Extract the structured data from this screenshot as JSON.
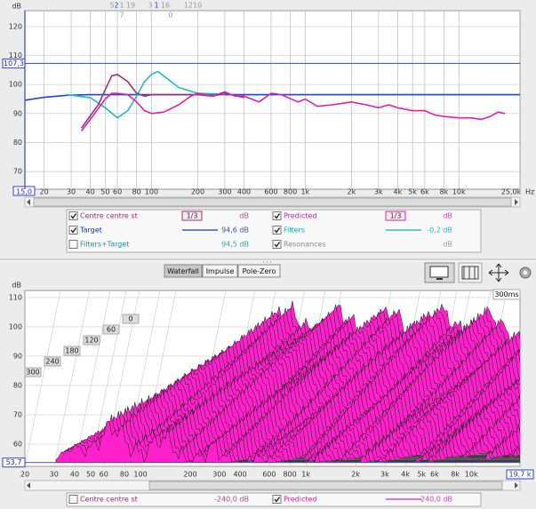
{
  "top_chart": {
    "type": "line",
    "y_unit": "dB",
    "x_unit": "Hz",
    "log_x": true,
    "xlim": [
      15,
      25000
    ],
    "ylim": [
      63.9,
      125.5
    ],
    "xticks": [
      {
        "value": 15,
        "label": "15,0"
      },
      20,
      30,
      40,
      50,
      60,
      80,
      100,
      200,
      300,
      400,
      600,
      800,
      {
        "value": 1000,
        "label": "1k"
      },
      {
        "value": 2000,
        "label": "2k"
      },
      {
        "value": 3000,
        "label": "3k"
      },
      {
        "value": 4000,
        "label": "4k"
      },
      {
        "value": 5000,
        "label": "5k"
      },
      {
        "value": 6000,
        "label": "6k"
      },
      {
        "value": 8000,
        "label": "8k"
      },
      {
        "value": 10000,
        "label": "10k"
      },
      {
        "value": 25000,
        "label": "25,0k"
      }
    ],
    "yticks": [
      70,
      80,
      90,
      100,
      110,
      120
    ],
    "level_marker": {
      "value": 107.3,
      "label": "107,3"
    },
    "top_markers": [
      "5",
      "2",
      "1",
      "19",
      "3",
      "1",
      "16",
      "1210",
      "7",
      "0"
    ],
    "series": [
      {
        "color": "#2244cc",
        "x": [
          15,
          20,
          28,
          40,
          25000
        ],
        "values": [
          94.6,
          95.6,
          96.3,
          96.5,
          96.5
        ]
      },
      {
        "color": "#22bbbb",
        "x": [
          28,
          40,
          50,
          60,
          70,
          80,
          90,
          100,
          110,
          120,
          150,
          200,
          250,
          300
        ],
        "values": [
          96.5,
          95.5,
          92,
          88.5,
          91,
          96,
          101,
          103.5,
          104.5,
          103,
          99,
          97,
          96.8,
          96.6
        ]
      },
      {
        "color": "#993377",
        "x": [
          35,
          45,
          55,
          60,
          70,
          80,
          90,
          100,
          150,
          200,
          250,
          300,
          400
        ],
        "values": [
          85,
          93,
          103,
          103.5,
          101,
          97,
          96,
          96.5,
          96.5,
          96.5,
          96,
          97,
          95.5
        ]
      },
      {
        "color": "#dd22aa",
        "x": [
          35,
          40,
          50,
          55,
          60,
          70,
          80,
          90,
          100,
          120,
          150,
          180,
          200,
          250,
          300,
          350,
          400,
          500,
          600,
          700,
          900,
          1000,
          1200,
          1500,
          2000,
          2500,
          3000,
          3500,
          4000,
          5000,
          6000,
          7000,
          8000,
          10000,
          12000,
          14000,
          16000,
          18000,
          20000
        ],
        "values": [
          84,
          88,
          95,
          97,
          97,
          96.5,
          94,
          91,
          90,
          90.5,
          93,
          96,
          97,
          96,
          97.5,
          96,
          96,
          94,
          97,
          96.5,
          94,
          95,
          92.5,
          93,
          94,
          93,
          92,
          93,
          92,
          91,
          91,
          89.5,
          89,
          88.5,
          88.5,
          88,
          89,
          90.5,
          90
        ]
      }
    ]
  },
  "top_legend": [
    {
      "name": "Centre centre st",
      "checked": true,
      "color": "#993377",
      "smoothing": "1/3",
      "reading": "dB"
    },
    {
      "name": "Predicted",
      "checked": true,
      "color": "#dd22aa",
      "smoothing": "1/3",
      "reading": "dB"
    },
    {
      "name": "Target",
      "checked": true,
      "color": "#2233aa",
      "line_sample": true,
      "reading": "94,6 dB"
    },
    {
      "name": "Filters",
      "checked": true,
      "color": "#11aaaa",
      "line_sample": true,
      "reading": "-0,2 dB"
    },
    {
      "name": "Filters+Target",
      "checked": false,
      "color": "#119999",
      "reading": "94,5 dB"
    },
    {
      "name": "Resonances",
      "checked": true,
      "color": "#888888",
      "reading": "dB"
    }
  ],
  "toolbar": [
    {
      "label": "Waterfall",
      "pressed": true
    },
    {
      "label": "Impulse",
      "pressed": false
    },
    {
      "label": "Pole-Zero",
      "pressed": false
    }
  ],
  "waterfall": {
    "type": "waterfall",
    "y_unit": "dB",
    "log_x": true,
    "xlim": [
      20,
      19700
    ],
    "ylim": [
      52.4,
      112.4
    ],
    "xticks": [
      20,
      30,
      40,
      50,
      60,
      80,
      100,
      200,
      300,
      400,
      600,
      800,
      {
        "value": 1000,
        "label": "1k"
      },
      {
        "value": 2000,
        "label": "2k"
      },
      {
        "value": 3000,
        "label": "3k"
      },
      {
        "value": 4000,
        "label": "4k"
      },
      {
        "value": 5000,
        "label": "5k"
      },
      {
        "value": 6000,
        "label": "6k"
      },
      {
        "value": 8000,
        "label": "8k"
      },
      {
        "value": 10000,
        "label": "10k"
      },
      {
        "value": 19700,
        "label": "19,7 k"
      }
    ],
    "yticks": [
      60,
      70,
      80,
      90,
      100,
      110
    ],
    "floor_marker": {
      "value": 53.7,
      "label": "53,7"
    },
    "time_ticks": [
      0,
      60,
      120,
      180,
      240,
      300
    ],
    "time_label": "300ms",
    "color": "#ff22cc"
  },
  "bottom_legend": [
    {
      "name": "Centre centre st",
      "checked": false,
      "color": "#993377",
      "reading": "-240,0 dB"
    },
    {
      "name": "Predicted",
      "checked": true,
      "color": "#dd22aa",
      "line_sample": true,
      "reading": "-240,0 dB"
    }
  ]
}
